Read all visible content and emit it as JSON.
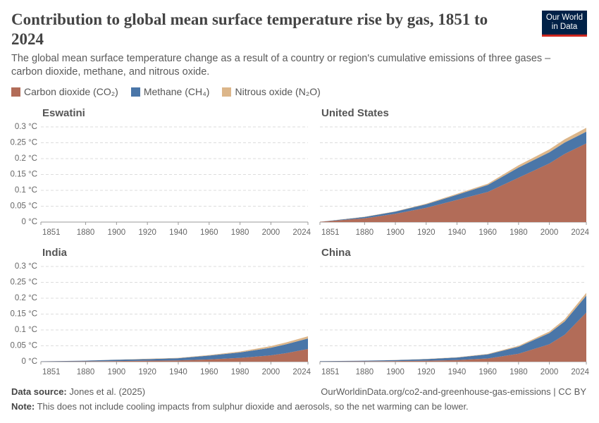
{
  "header": {
    "title": "Contribution to global mean surface temperature rise by gas, 1851 to 2024",
    "subtitle": "The global mean surface temperature change as a result of a country or region's cumulative emissions of three gases – carbon dioxide, methane, and nitrous oxide.",
    "logo": [
      "Our World",
      "in Data"
    ]
  },
  "footer": {
    "data_source_label": "Data source:",
    "data_source": "Jones et al. (2025)",
    "url": "OurWorldinData.org/co2-and-greenhouse-gas-emissions | CC BY",
    "note_label": "Note:",
    "note": "This does not include cooling impacts from sulphur dioxide and aerosols, so the net warming can be lower."
  },
  "chart_data": [
    {
      "type": "area",
      "stacked": true,
      "title": "Eswatini",
      "x": [
        1851,
        1880,
        1900,
        1920,
        1940,
        1960,
        1980,
        2000,
        2010,
        2024
      ],
      "xlim": [
        1851,
        2024
      ],
      "xticks": [
        1851,
        1880,
        1900,
        1920,
        1940,
        1960,
        1980,
        2000,
        2024
      ],
      "ylim": [
        0,
        0.3
      ],
      "yticks": [
        {
          "value": 0,
          "label": "0 °C"
        },
        {
          "value": 0.05,
          "label": "0.05 °C"
        },
        {
          "value": 0.1,
          "label": "0.1 °C"
        },
        {
          "value": 0.15,
          "label": "0.15 °C"
        },
        {
          "value": 0.2,
          "label": "0.2 °C"
        },
        {
          "value": 0.25,
          "label": "0.25 °C"
        },
        {
          "value": 0.3,
          "label": "0.3 °C"
        }
      ],
      "series": [
        {
          "name": "Carbon dioxide (CO₂)",
          "color": "#b26c58",
          "values": [
            0,
            0,
            0,
            0,
            0,
            0,
            0,
            0,
            0,
            0
          ]
        },
        {
          "name": "Methane (CH₄)",
          "color": "#4a76a8",
          "values": [
            0,
            0,
            0,
            0,
            0,
            0,
            0,
            0,
            0,
            0
          ]
        },
        {
          "name": "Nitrous oxide (N₂O)",
          "color": "#dcb68a",
          "values": [
            0,
            0,
            0,
            0,
            0,
            0,
            0,
            0,
            0,
            0
          ]
        }
      ]
    },
    {
      "type": "area",
      "stacked": true,
      "title": "United States",
      "x": [
        1851,
        1880,
        1900,
        1920,
        1940,
        1960,
        1980,
        2000,
        2010,
        2024
      ],
      "xlim": [
        1851,
        2024
      ],
      "xticks": [
        1851,
        1880,
        1900,
        1920,
        1940,
        1960,
        1980,
        2000,
        2024
      ],
      "ylim": [
        0,
        0.3
      ],
      "yticks": [
        0,
        0.05,
        0.1,
        0.15,
        0.2,
        0.25,
        0.3
      ],
      "series": [
        {
          "name": "Carbon dioxide (CO₂)",
          "color": "#b26c58",
          "values": [
            0.001,
            0.012,
            0.026,
            0.045,
            0.07,
            0.095,
            0.14,
            0.185,
            0.215,
            0.248
          ]
        },
        {
          "name": "Methane (CH₄)",
          "color": "#4a76a8",
          "values": [
            0,
            0.004,
            0.007,
            0.011,
            0.016,
            0.022,
            0.032,
            0.035,
            0.036,
            0.037
          ]
        },
        {
          "name": "Nitrous oxide (N₂O)",
          "color": "#dcb68a",
          "values": [
            0,
            0.001,
            0.001,
            0.002,
            0.003,
            0.004,
            0.007,
            0.009,
            0.01,
            0.012
          ]
        }
      ]
    },
    {
      "type": "area",
      "stacked": true,
      "title": "India",
      "x": [
        1851,
        1880,
        1900,
        1920,
        1940,
        1960,
        1980,
        2000,
        2010,
        2024
      ],
      "xlim": [
        1851,
        2024
      ],
      "xticks": [
        1851,
        1880,
        1900,
        1920,
        1940,
        1960,
        1980,
        2000,
        2024
      ],
      "ylim": [
        0,
        0.3
      ],
      "yticks": [
        {
          "value": 0,
          "label": "0 °C"
        },
        {
          "value": 0.05,
          "label": "0.05 °C"
        },
        {
          "value": 0.1,
          "label": "0.1 °C"
        },
        {
          "value": 0.15,
          "label": "0.15 °C"
        },
        {
          "value": 0.2,
          "label": "0.2 °C"
        },
        {
          "value": 0.25,
          "label": "0.25 °C"
        },
        {
          "value": 0.3,
          "label": "0.3 °C"
        }
      ],
      "series": [
        {
          "name": "Carbon dioxide (CO₂)",
          "color": "#b26c58",
          "values": [
            0.0005,
            0.001,
            0.002,
            0.003,
            0.004,
            0.007,
            0.012,
            0.02,
            0.027,
            0.04
          ]
        },
        {
          "name": "Methane (CH₄)",
          "color": "#4a76a8",
          "values": [
            0.0005,
            0.002,
            0.004,
            0.005,
            0.007,
            0.012,
            0.017,
            0.024,
            0.028,
            0.033
          ]
        },
        {
          "name": "Nitrous oxide (N₂O)",
          "color": "#dcb68a",
          "values": [
            0,
            0.0002,
            0.0005,
            0.001,
            0.001,
            0.002,
            0.003,
            0.005,
            0.006,
            0.007
          ]
        }
      ]
    },
    {
      "type": "area",
      "stacked": true,
      "title": "China",
      "x": [
        1851,
        1880,
        1900,
        1920,
        1940,
        1960,
        1980,
        2000,
        2010,
        2024
      ],
      "xlim": [
        1851,
        2024
      ],
      "xticks": [
        1851,
        1880,
        1900,
        1920,
        1940,
        1960,
        1980,
        2000,
        2024
      ],
      "ylim": [
        0,
        0.3
      ],
      "yticks": [
        0,
        0.05,
        0.1,
        0.15,
        0.2,
        0.25,
        0.3
      ],
      "series": [
        {
          "name": "Carbon dioxide (CO₂)",
          "color": "#b26c58",
          "values": [
            0.0005,
            0.001,
            0.002,
            0.003,
            0.005,
            0.01,
            0.025,
            0.055,
            0.085,
            0.155
          ]
        },
        {
          "name": "Methane (CH₄)",
          "color": "#4a76a8",
          "values": [
            0.001,
            0.002,
            0.003,
            0.005,
            0.008,
            0.013,
            0.022,
            0.035,
            0.042,
            0.053
          ]
        },
        {
          "name": "Nitrous oxide (N₂O)",
          "color": "#dcb68a",
          "values": [
            0,
            0.0002,
            0.0004,
            0.0006,
            0.001,
            0.0015,
            0.003,
            0.005,
            0.007,
            0.009
          ]
        }
      ]
    }
  ]
}
